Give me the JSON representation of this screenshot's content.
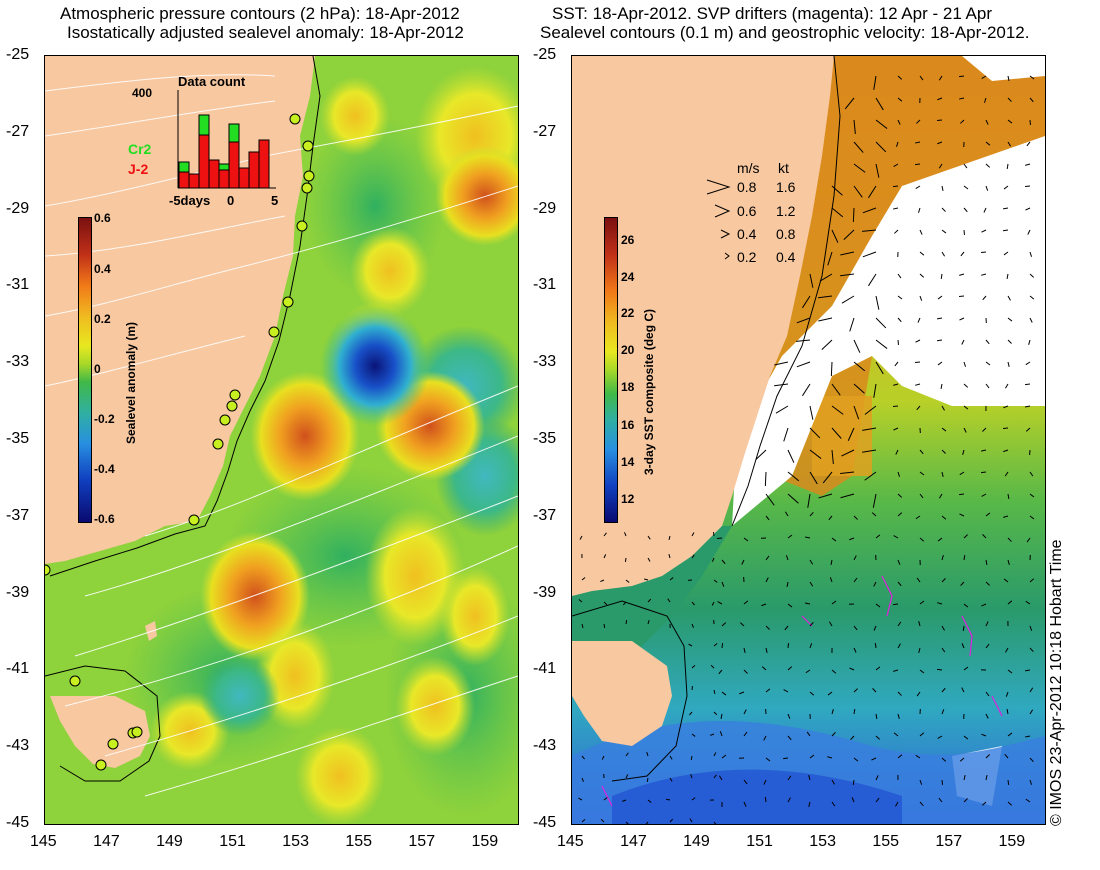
{
  "left_panel": {
    "title_line1": "Atmospheric pressure contours (2 hPa): 18-Apr-2012",
    "title_line2": "Isostatically adjusted sealevel anomaly: 18-Apr-2012",
    "colorbar": {
      "label": "Sealevel anomaly (m)",
      "ticks": [
        "0.6",
        "0.4",
        "0.2",
        "0",
        "-0.2",
        "-0.4",
        "-0.6"
      ]
    },
    "inset": {
      "title": "Data count",
      "y_max_label": "400",
      "x_ticks": [
        "-5days",
        "0",
        "5"
      ],
      "legend": [
        {
          "name": "Cr2",
          "color": "#22dd22"
        },
        {
          "name": "J-2",
          "color": "#ee1111"
        }
      ]
    }
  },
  "right_panel": {
    "title_line1": "SST: 18-Apr-2012. SVP drifters (magenta): 12 Apr - 21 Apr",
    "title_line2": "Sealevel contours (0.1 m) and geostrophic velocity: 18-Apr-2012.",
    "colorbar": {
      "label": "3-day SST composite (deg C)",
      "ticks": [
        "26",
        "24",
        "22",
        "20",
        "18",
        "16",
        "14",
        "12"
      ]
    },
    "speed_legend": {
      "header_ms": "m/s",
      "header_kt": "kt",
      "rows": [
        {
          "ms": "0.8",
          "kt": "1.6"
        },
        {
          "ms": "0.6",
          "kt": "1.2"
        },
        {
          "ms": "0.4",
          "kt": "0.8"
        },
        {
          "ms": "0.2",
          "kt": "0.4"
        }
      ]
    }
  },
  "axes": {
    "y_ticks": [
      "-25",
      "-27",
      "-29",
      "-31",
      "-33",
      "-35",
      "-37",
      "-39",
      "-41",
      "-43",
      "-45"
    ],
    "x_ticks": [
      "145",
      "147",
      "149",
      "151",
      "153",
      "155",
      "157",
      "159"
    ]
  },
  "credit": "© IMOS 23-Apr-2012 10:18 Hobart Time",
  "colors": {
    "land": "#f8c8a0",
    "ocean_green": "#8ed23c",
    "sst_warm": "#d98a1c",
    "sst_cool": "#1f8a5a",
    "sst_cold": "#3aa0e8",
    "cloud": "#ffffff"
  }
}
